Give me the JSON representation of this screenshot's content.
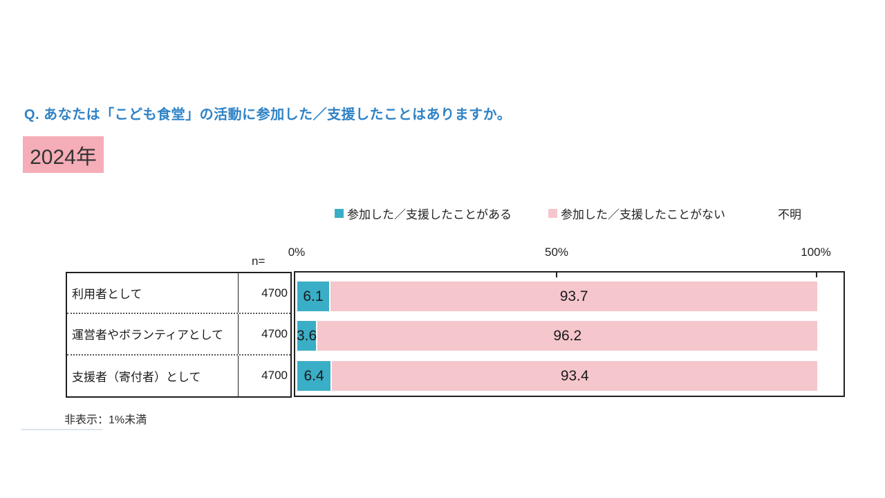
{
  "title": "Q. あなたは「こども食堂」の活動に参加した／支援したことはありますか。",
  "year_badge": "2024年",
  "legend": [
    {
      "label": "参加した／支援したことがある",
      "color": "#3AAEC6"
    },
    {
      "label": "参加した／支援したことがない",
      "color": "#F5C6CC"
    },
    {
      "label": "不明",
      "color": null
    }
  ],
  "axis": {
    "n_label": "n=",
    "ticks": [
      "0%",
      "50%",
      "100%"
    ]
  },
  "footnote": "非表示：1%未満",
  "colors": {
    "title": "#2E82C6",
    "year_badge_bg": "#F5ADB7",
    "series_have": "#3AAEC6",
    "series_havent": "#F5C6CC",
    "border": "#1f1f1f"
  },
  "chart_data": {
    "type": "bar",
    "orientation": "horizontal",
    "stacked": true,
    "title": "Q. あなたは「こども食堂」の活動に参加した／支援したことはありますか。",
    "categories": [
      "利用者として",
      "運営者やボランティアとして",
      "支援者（寄付者）として"
    ],
    "n": [
      4700,
      4700,
      4700
    ],
    "series": [
      {
        "name": "参加した／支援したことがある",
        "color": "#3AAEC6",
        "values": [
          6.1,
          3.6,
          6.4
        ]
      },
      {
        "name": "参加した／支援したことがない",
        "color": "#F5C6CC",
        "values": [
          93.7,
          96.2,
          93.4
        ]
      },
      {
        "name": "不明",
        "color": null,
        "values": [],
        "note": "非表示：1%未満"
      }
    ],
    "xlim": [
      0,
      100
    ],
    "x_ticks": [
      0,
      50,
      100
    ],
    "legend_position": "top",
    "grid": false
  }
}
